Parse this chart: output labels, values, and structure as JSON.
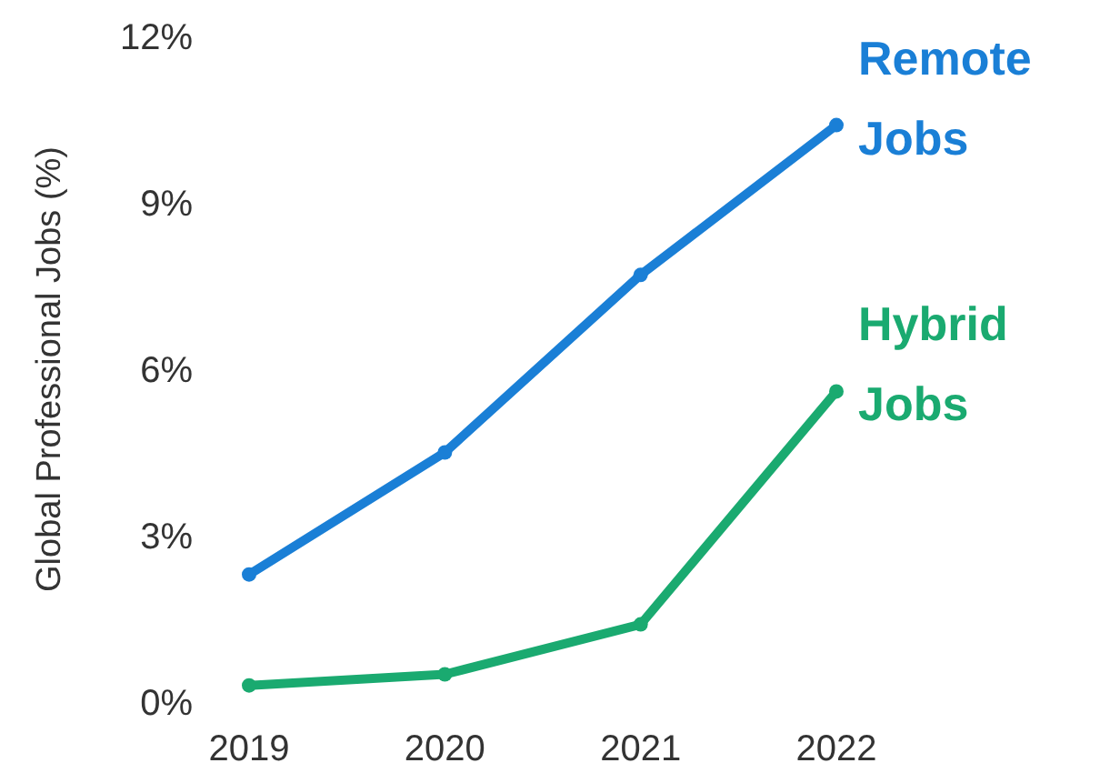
{
  "chart_data": {
    "type": "line",
    "ylabel": "Global Professional Jobs (%)",
    "categories": [
      "2019",
      "2020",
      "2021",
      "2022"
    ],
    "series": [
      {
        "name": "Remote Jobs",
        "color": "#1a7fd6",
        "values": [
          2.3,
          4.5,
          7.7,
          10.4
        ]
      },
      {
        "name": "Hybrid Jobs",
        "color": "#1aaa70",
        "values": [
          0.3,
          0.5,
          1.4,
          5.6
        ]
      }
    ],
    "ylim": [
      0,
      12
    ],
    "yticks": [
      {
        "value": 0,
        "label": "0%"
      },
      {
        "value": 3,
        "label": "3%"
      },
      {
        "value": 6,
        "label": "6%"
      },
      {
        "value": 9,
        "label": "9%"
      },
      {
        "value": 12,
        "label": "12%"
      }
    ],
    "grid": false,
    "marker": "circle",
    "line_style": "solid"
  }
}
